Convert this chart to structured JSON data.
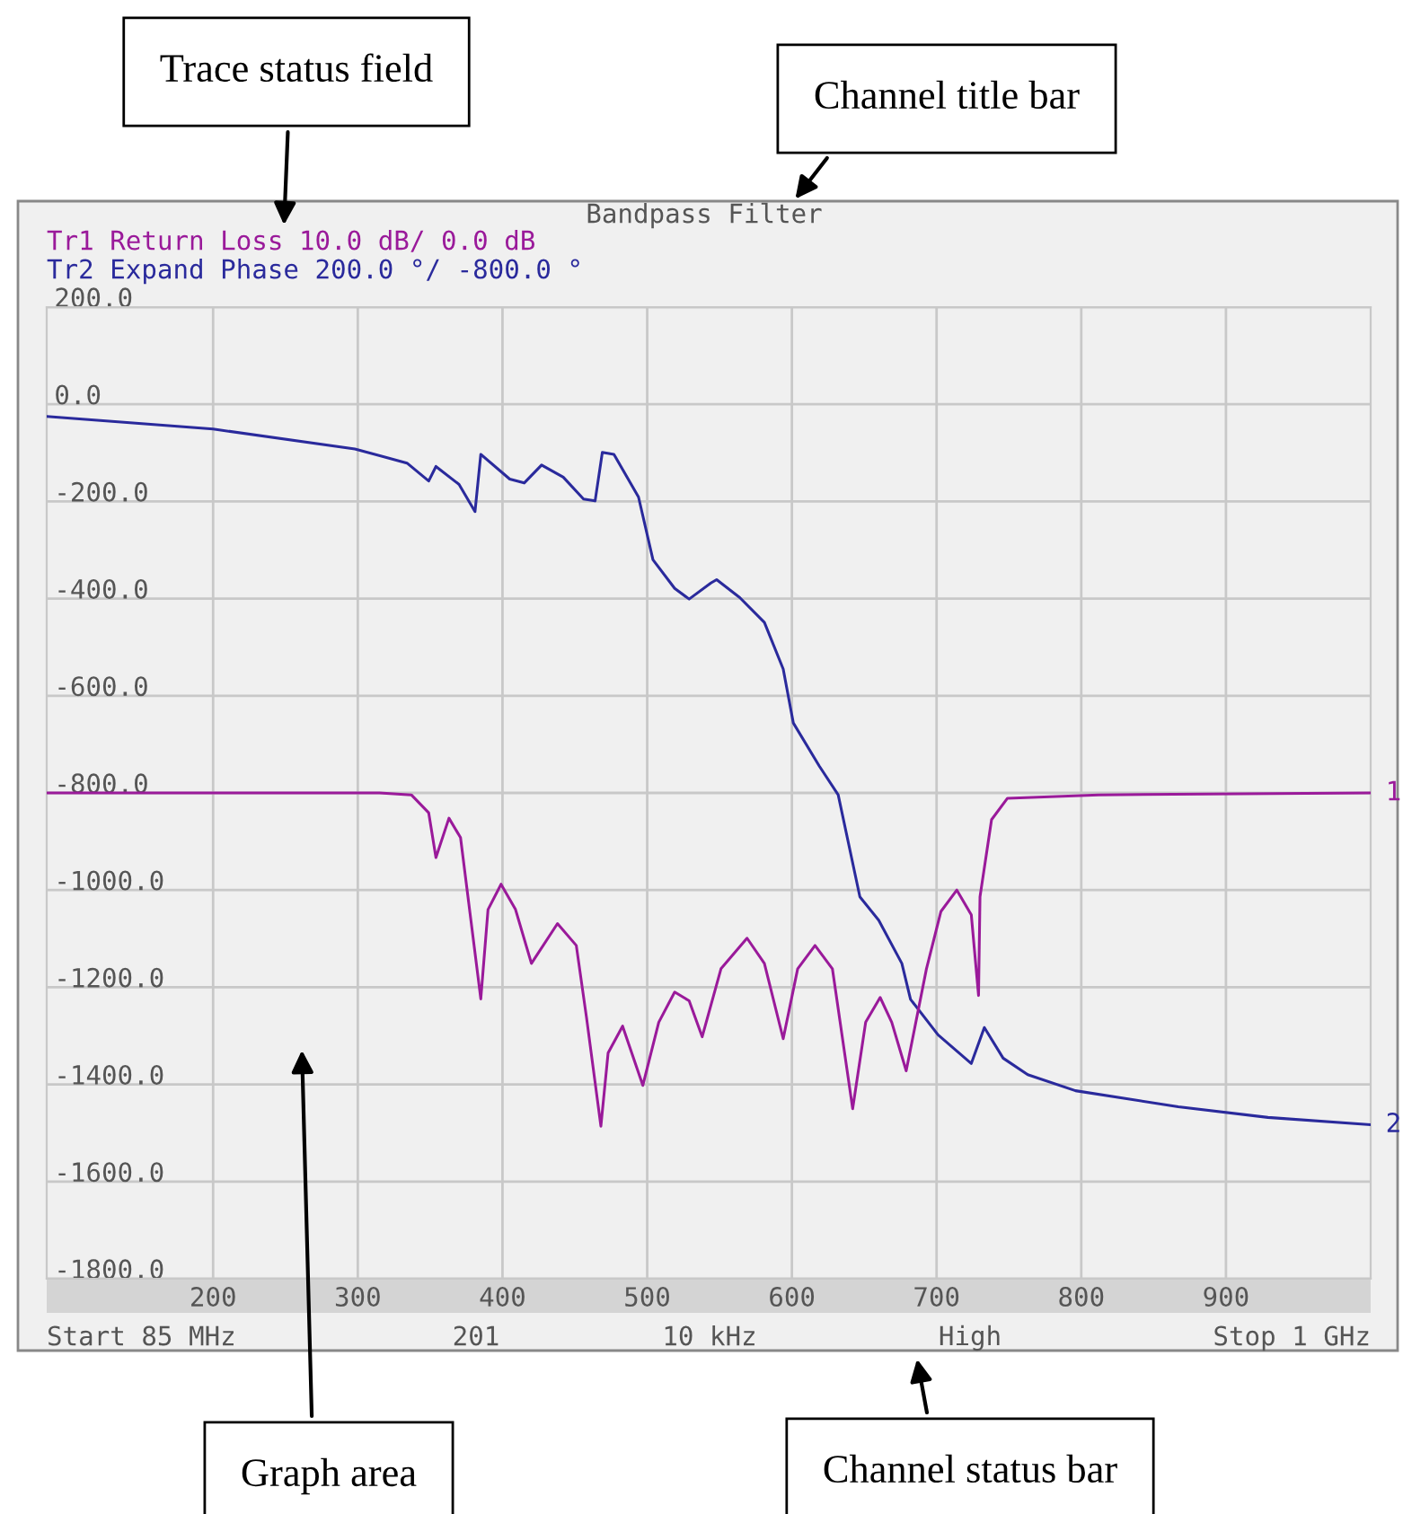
{
  "chart_data": {
    "type": "line",
    "title": "Bandpass Filter",
    "x": [
      85,
      200,
      298,
      334,
      349,
      354,
      370,
      381,
      385,
      405,
      415,
      427,
      442,
      456,
      464,
      469,
      477,
      494,
      504,
      519,
      529,
      544,
      548,
      564,
      581,
      594,
      601,
      619,
      632,
      647,
      660,
      676,
      682,
      701,
      724,
      733,
      746,
      763,
      796,
      867,
      929,
      1000
    ],
    "series": [
      {
        "name": "Tr2 Expand Phase 200.0 °/ -800.0 °",
        "color": "#2a2a9c",
        "values": [
          -25,
          -51,
          -92,
          -121,
          -158,
          -128,
          -165,
          -221,
          -103,
          -154,
          -162,
          -125,
          -150,
          -195,
          -199,
          -99,
          -103,
          -191,
          -320,
          -379,
          -401,
          -368,
          -361,
          -398,
          -449,
          -545,
          -656,
          -745,
          -804,
          -1014,
          -1062,
          -1151,
          -1225,
          -1298,
          -1357,
          -1283,
          -1346,
          -1380,
          -1413,
          -1446,
          -1468,
          -1483
        ]
      },
      {
        "name": "Tr1 Return Loss 10.0 dB/ 0.0 dB",
        "color": "#9a1a9a",
        "x": [
          85,
          315,
          337,
          349,
          354,
          363,
          371,
          385,
          390,
          399,
          409,
          420,
          438,
          451,
          458,
          468,
          473,
          483,
          497,
          508,
          519,
          529,
          538,
          551,
          569,
          581,
          594,
          604,
          616,
          628,
          642,
          651,
          661,
          669,
          679,
          693,
          703,
          714,
          724,
          729,
          730,
          738,
          749,
          812,
          1000
        ],
        "values": [
          -800,
          -800,
          -804,
          -841,
          -933,
          -852,
          -892,
          -1224,
          -1040,
          -988,
          -1040,
          -1151,
          -1069,
          -1114,
          -1261,
          -1486,
          -1335,
          -1280,
          -1402,
          -1272,
          -1210,
          -1228,
          -1302,
          -1162,
          -1099,
          -1151,
          -1306,
          -1162,
          -1114,
          -1162,
          -1450,
          -1272,
          -1221,
          -1272,
          -1372,
          -1162,
          -1044,
          -1000,
          -1051,
          -1217,
          -1014,
          -855,
          -811,
          -804,
          -800
        ]
      }
    ],
    "xlim": [
      85,
      1000
    ],
    "xticks": [
      200,
      300,
      400,
      500,
      600,
      700,
      800,
      900
    ],
    "ylim": [
      -1800,
      200
    ],
    "yticks": [
      {
        "value": 200,
        "label": "200.0"
      },
      {
        "value": 0,
        "label": "0.0"
      },
      {
        "value": -200,
        "label": "-200.0"
      },
      {
        "value": -400,
        "label": "-400.0"
      },
      {
        "value": -600,
        "label": "-600.0"
      },
      {
        "value": -800,
        "label": "-800.0"
      },
      {
        "value": -1000,
        "label": "-1000.0"
      },
      {
        "value": -1200,
        "label": "-1200.0"
      },
      {
        "value": -1400,
        "label": "-1400.0"
      },
      {
        "value": -1600,
        "label": "-1600.0"
      },
      {
        "value": -1800,
        "label": "-1800.0"
      }
    ],
    "grid": true,
    "line_style": "solid",
    "marker": "none",
    "annotations": [
      "Trace status field",
      "Channel title bar",
      "Graph area",
      "Channel status bar",
      "Start 85 MHz",
      "201",
      "10 kHz",
      "High",
      "Stop 1 GHz",
      {
        "text": "1",
        "x": 1000,
        "y": -800
      },
      {
        "text": "2",
        "x": 1000,
        "y": -1483
      }
    ]
  }
}
